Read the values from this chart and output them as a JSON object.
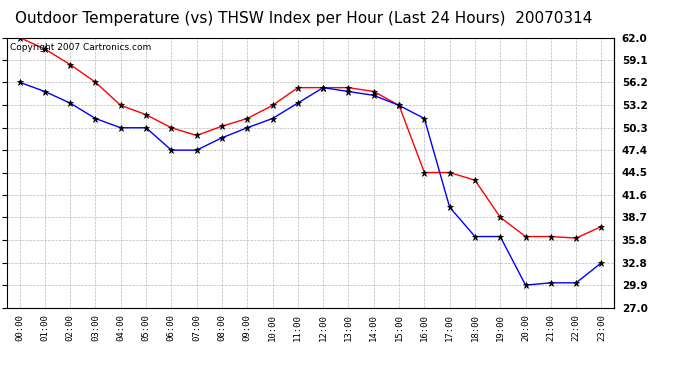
{
  "title": "Outdoor Temperature (vs) THSW Index per Hour (Last 24 Hours)  20070314",
  "copyright": "Copyright 2007 Cartronics.com",
  "hours": [
    "00:00",
    "01:00",
    "02:00",
    "03:00",
    "04:00",
    "05:00",
    "06:00",
    "07:00",
    "08:00",
    "09:00",
    "10:00",
    "11:00",
    "12:00",
    "13:00",
    "14:00",
    "15:00",
    "16:00",
    "17:00",
    "18:00",
    "19:00",
    "20:00",
    "21:00",
    "22:00",
    "23:00"
  ],
  "temp": [
    56.2,
    55.0,
    53.5,
    51.5,
    50.3,
    50.3,
    47.4,
    47.4,
    49.0,
    50.3,
    51.5,
    53.5,
    55.5,
    55.0,
    54.5,
    53.2,
    51.5,
    40.0,
    36.2,
    36.2,
    29.9,
    30.2,
    30.2,
    32.8
  ],
  "thsw": [
    62.0,
    60.5,
    58.5,
    56.2,
    53.2,
    52.0,
    50.3,
    49.3,
    50.5,
    51.5,
    53.2,
    55.5,
    55.5,
    55.5,
    55.0,
    53.2,
    44.5,
    44.5,
    43.5,
    38.7,
    36.2,
    36.2,
    36.0,
    37.5
  ],
  "ylim_min": 27.0,
  "ylim_max": 62.0,
  "yticks": [
    27.0,
    29.9,
    32.8,
    35.8,
    38.7,
    41.6,
    44.5,
    47.4,
    50.3,
    53.2,
    56.2,
    59.1,
    62.0
  ],
  "temp_color": "#0000ff",
  "thsw_color": "#ff0000",
  "bg_color": "#ffffff",
  "grid_color": "#b0b0b0",
  "title_fontsize": 11,
  "copyright_fontsize": 6.5
}
